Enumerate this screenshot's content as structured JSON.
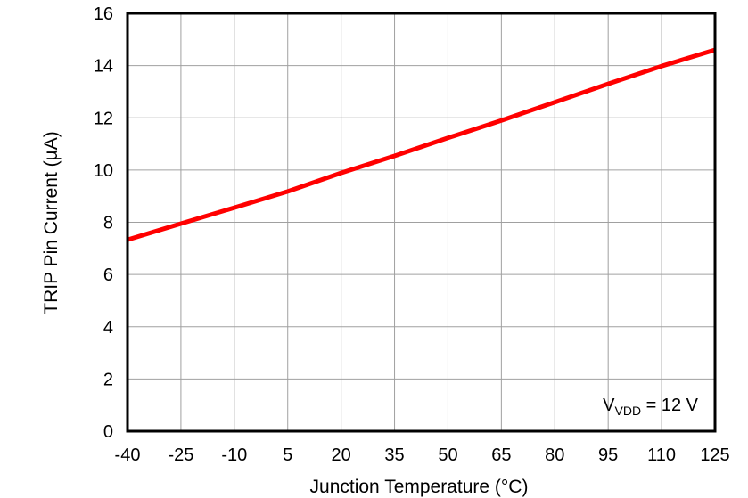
{
  "chart_data": {
    "type": "line",
    "title": "",
    "xlabel": "Junction Temperature (°C)",
    "ylabel": "TRIP Pin Current (µA)",
    "xlim": [
      -40,
      125
    ],
    "ylim": [
      0,
      16
    ],
    "x_ticks": [
      -40,
      -25,
      -10,
      5,
      20,
      35,
      50,
      65,
      80,
      95,
      110,
      125
    ],
    "y_ticks": [
      0,
      2,
      4,
      6,
      8,
      10,
      12,
      14,
      16
    ],
    "grid": true,
    "legend": null,
    "annotation": {
      "main": "V",
      "sub": "VDD",
      "rest": " = 12 V"
    },
    "series": [
      {
        "name": "TRIP Pin Current",
        "color": "#ff0000",
        "x": [
          -40,
          -25,
          -10,
          5,
          20,
          35,
          50,
          65,
          80,
          95,
          110,
          125
        ],
        "y": [
          7.33,
          7.95,
          8.56,
          9.18,
          9.89,
          10.54,
          11.23,
          11.9,
          12.6,
          13.3,
          13.98,
          14.6
        ]
      }
    ]
  },
  "colors": {
    "line": "#ff0000",
    "grid": "#a0a0a0",
    "frame": "#000000",
    "background": "#ffffff"
  }
}
